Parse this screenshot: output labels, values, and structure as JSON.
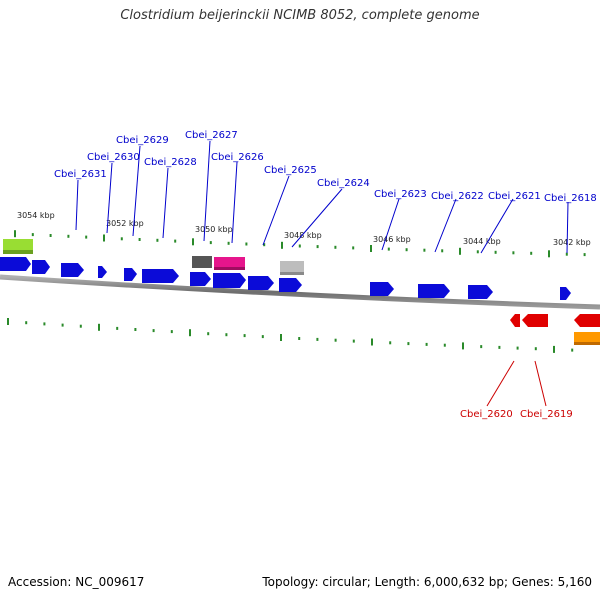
{
  "title": "Clostridium beijerinckii NCIMB 8052, complete genome",
  "footer": {
    "accession": "Accession: NC_009617",
    "topology": "Topology: circular; Length: 6,000,632 bp; Genes: 5,160"
  },
  "colors": {
    "forward_gene": "#0b0bd8",
    "reverse_gene": "#e00000",
    "tick": "#2a8a2a",
    "backbone": "#7a7a7a",
    "fwd_label": "#0000cc",
    "rev_label": "#cc0000"
  },
  "kbp_labels": [
    "3054 kbp",
    "3052 kbp",
    "3050 kbp",
    "3048 kbp",
    "3046 kbp",
    "3044 kbp",
    "3042 kbp"
  ],
  "forward_labels": [
    "Cbei_2631",
    "Cbei_2630",
    "Cbei_2629",
    "Cbei_2628",
    "Cbei_2627",
    "Cbei_2626",
    "Cbei_2625",
    "Cbei_2624",
    "Cbei_2623",
    "Cbei_2622",
    "Cbei_2621",
    "Cbei_2618"
  ],
  "reverse_labels": [
    "Cbei_2620",
    "Cbei_2619"
  ]
}
